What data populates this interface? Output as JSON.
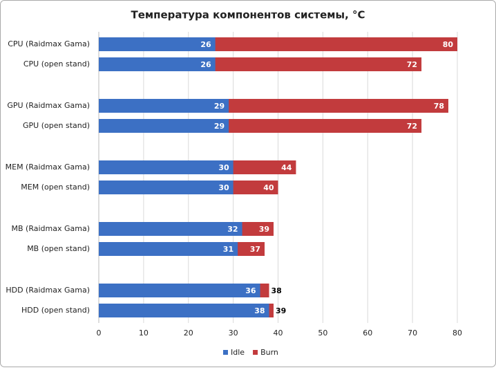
{
  "chart_data": {
    "type": "bar",
    "orientation": "horizontal",
    "overlap": true,
    "title": "Температура компонентов системы, °C",
    "categories": [
      "CPU (Raidmax Gama)",
      "CPU (open stand)",
      "GPU (Raidmax Gama)",
      "GPU (open stand)",
      "MEM (Raidmax Gama)",
      "MEM (open stand)",
      "MB (Raidmax Gama)",
      "MB (open stand)",
      "HDD (Raidmax Gama)",
      "HDD (open stand)"
    ],
    "series": [
      {
        "name": "Idle",
        "color": "#3c70c4",
        "values": [
          26,
          26,
          29,
          29,
          30,
          30,
          32,
          31,
          36,
          38
        ]
      },
      {
        "name": "Burn",
        "color": "#c23b3d",
        "values": [
          80,
          72,
          78,
          72,
          44,
          40,
          39,
          37,
          38,
          39
        ]
      }
    ],
    "xlim": [
      0,
      80
    ],
    "xticks": [
      0,
      10,
      20,
      30,
      40,
      50,
      60,
      70,
      80
    ],
    "grid": true,
    "legend": "bottom"
  }
}
